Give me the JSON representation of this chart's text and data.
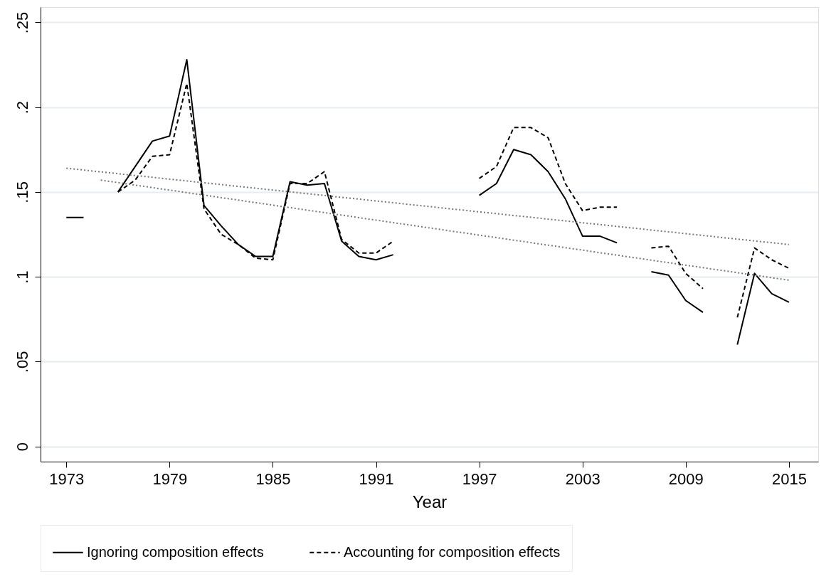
{
  "chart_data": {
    "type": "line",
    "xlabel": "Year",
    "x": [
      1973,
      1974,
      1975,
      1976,
      1977,
      1978,
      1979,
      1980,
      1981,
      1982,
      1983,
      1984,
      1985,
      1986,
      1987,
      1988,
      1989,
      1990,
      1991,
      1992,
      1993,
      1994,
      1995,
      1996,
      1997,
      1998,
      1999,
      2000,
      2001,
      2002,
      2003,
      2004,
      2005,
      2006,
      2007,
      2008,
      2009,
      2010,
      2011,
      2012,
      2013,
      2014,
      2015
    ],
    "series": [
      {
        "name": "Ignoring composition effects",
        "color": "#000000",
        "line_style": "solid",
        "values": [
          0.135,
          0.135,
          null,
          0.15,
          0.165,
          0.18,
          0.183,
          0.228,
          0.142,
          0.13,
          0.119,
          0.112,
          0.112,
          0.156,
          0.154,
          0.155,
          0.121,
          0.112,
          0.11,
          0.113,
          null,
          null,
          null,
          null,
          0.148,
          0.155,
          0.175,
          0.172,
          0.162,
          0.146,
          0.124,
          0.124,
          0.12,
          null,
          0.103,
          0.101,
          0.086,
          0.079,
          null,
          0.06,
          0.102,
          0.09,
          0.085
        ]
      },
      {
        "name": "Accounting for composition effects",
        "color": "#000000",
        "line_style": "dashed",
        "values": [
          null,
          null,
          null,
          0.15,
          0.157,
          0.171,
          0.172,
          0.214,
          0.14,
          0.125,
          0.119,
          0.111,
          0.11,
          0.155,
          0.155,
          0.162,
          0.122,
          0.114,
          0.114,
          0.121,
          null,
          null,
          null,
          null,
          0.158,
          0.165,
          0.188,
          0.188,
          0.182,
          0.155,
          0.139,
          0.141,
          0.141,
          null,
          0.117,
          0.118,
          0.102,
          0.093,
          null,
          0.076,
          0.117,
          0.11,
          0.105
        ]
      },
      {
        "type": "line",
        "color": "#777777",
        "line_style": "dotted",
        "x": [
          1973,
          2015
        ],
        "values": [
          0.164,
          0.119
        ]
      },
      {
        "type": "line",
        "color": "#777777",
        "line_style": "dotted",
        "x": [
          1975,
          2015
        ],
        "values": [
          0.157,
          0.098
        ]
      }
    ],
    "xlim": [
      1971.5,
      2016.7
    ],
    "xticks": [
      1973,
      1979,
      1985,
      1991,
      1997,
      2003,
      2009,
      2015
    ],
    "ylim": [
      -0.009,
      0.259
    ],
    "yticks": [
      {
        "value": 0,
        "label": "0"
      },
      {
        "value": 0.05,
        "label": ".05"
      },
      {
        "value": 0.1,
        "label": ".1"
      },
      {
        "value": 0.15,
        "label": ".15"
      },
      {
        "value": 0.2,
        "label": ".2"
      },
      {
        "value": 0.25,
        "label": ".25"
      }
    ],
    "grid": "y",
    "legend": "bottom",
    "marker": "none"
  }
}
